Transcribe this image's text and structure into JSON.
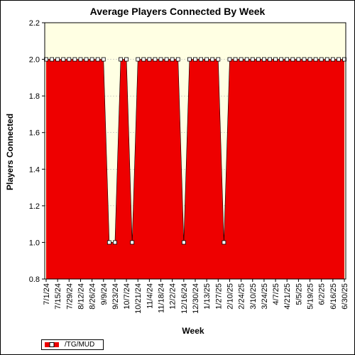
{
  "chart_data": {
    "type": "area",
    "title": "Average Players Connected By Week",
    "xlabel": "Week",
    "ylabel": "Players Connected",
    "ylim": [
      0.8,
      2.2
    ],
    "yticks": [
      "0.8",
      "1.0",
      "1.2",
      "1.4",
      "1.6",
      "1.8",
      "2.0",
      "2.2"
    ],
    "x_tick_labels": [
      "7/1/24",
      "7/15/24",
      "7/29/24",
      "8/12/24",
      "8/26/24",
      "9/9/24",
      "9/23/24",
      "10/7/24",
      "10/21/24",
      "11/4/24",
      "11/18/24",
      "12/2/24",
      "12/16/24",
      "12/30/24",
      "1/13/25",
      "1/27/25",
      "2/10/25",
      "2/24/25",
      "3/10/25",
      "3/24/25",
      "4/7/25",
      "4/21/25",
      "5/5/25",
      "5/19/25",
      "6/2/25",
      "6/16/25",
      "6/30/25"
    ],
    "grid": true,
    "legend_position": "bottom-left",
    "series": [
      {
        "name": "/TG/MUD",
        "color": "#ee0000",
        "x": [
          "7/1/24",
          "7/8/24",
          "7/15/24",
          "7/22/24",
          "7/29/24",
          "8/5/24",
          "8/12/24",
          "8/19/24",
          "8/26/24",
          "9/2/24",
          "9/9/24",
          "9/16/24",
          "9/23/24",
          "9/30/24",
          "10/7/24",
          "10/14/24",
          "10/21/24",
          "10/28/24",
          "11/4/24",
          "11/11/24",
          "11/18/24",
          "11/25/24",
          "12/2/24",
          "12/9/24",
          "12/16/24",
          "12/23/24",
          "12/30/24",
          "1/6/25",
          "1/13/25",
          "1/20/25",
          "1/27/25",
          "2/3/25",
          "2/10/25",
          "2/17/25",
          "2/24/25",
          "3/3/25",
          "3/10/25",
          "3/17/25",
          "3/24/25",
          "3/31/25",
          "4/7/25",
          "4/14/25",
          "4/21/25",
          "4/28/25",
          "5/5/25",
          "5/12/25",
          "5/19/25",
          "5/26/25",
          "6/2/25",
          "6/9/25",
          "6/16/25",
          "6/23/25",
          "6/30/25"
        ],
        "values": [
          2,
          2,
          2,
          2,
          2,
          2,
          2,
          2,
          2,
          2,
          2,
          1,
          1,
          2,
          2,
          1,
          2,
          2,
          2,
          2,
          2,
          2,
          2,
          2,
          1,
          2,
          2,
          2,
          2,
          2,
          2,
          1,
          2,
          2,
          2,
          2,
          2,
          2,
          2,
          2,
          2,
          2,
          2,
          2,
          2,
          2,
          2,
          2,
          2,
          2,
          2,
          2,
          2
        ]
      }
    ]
  }
}
